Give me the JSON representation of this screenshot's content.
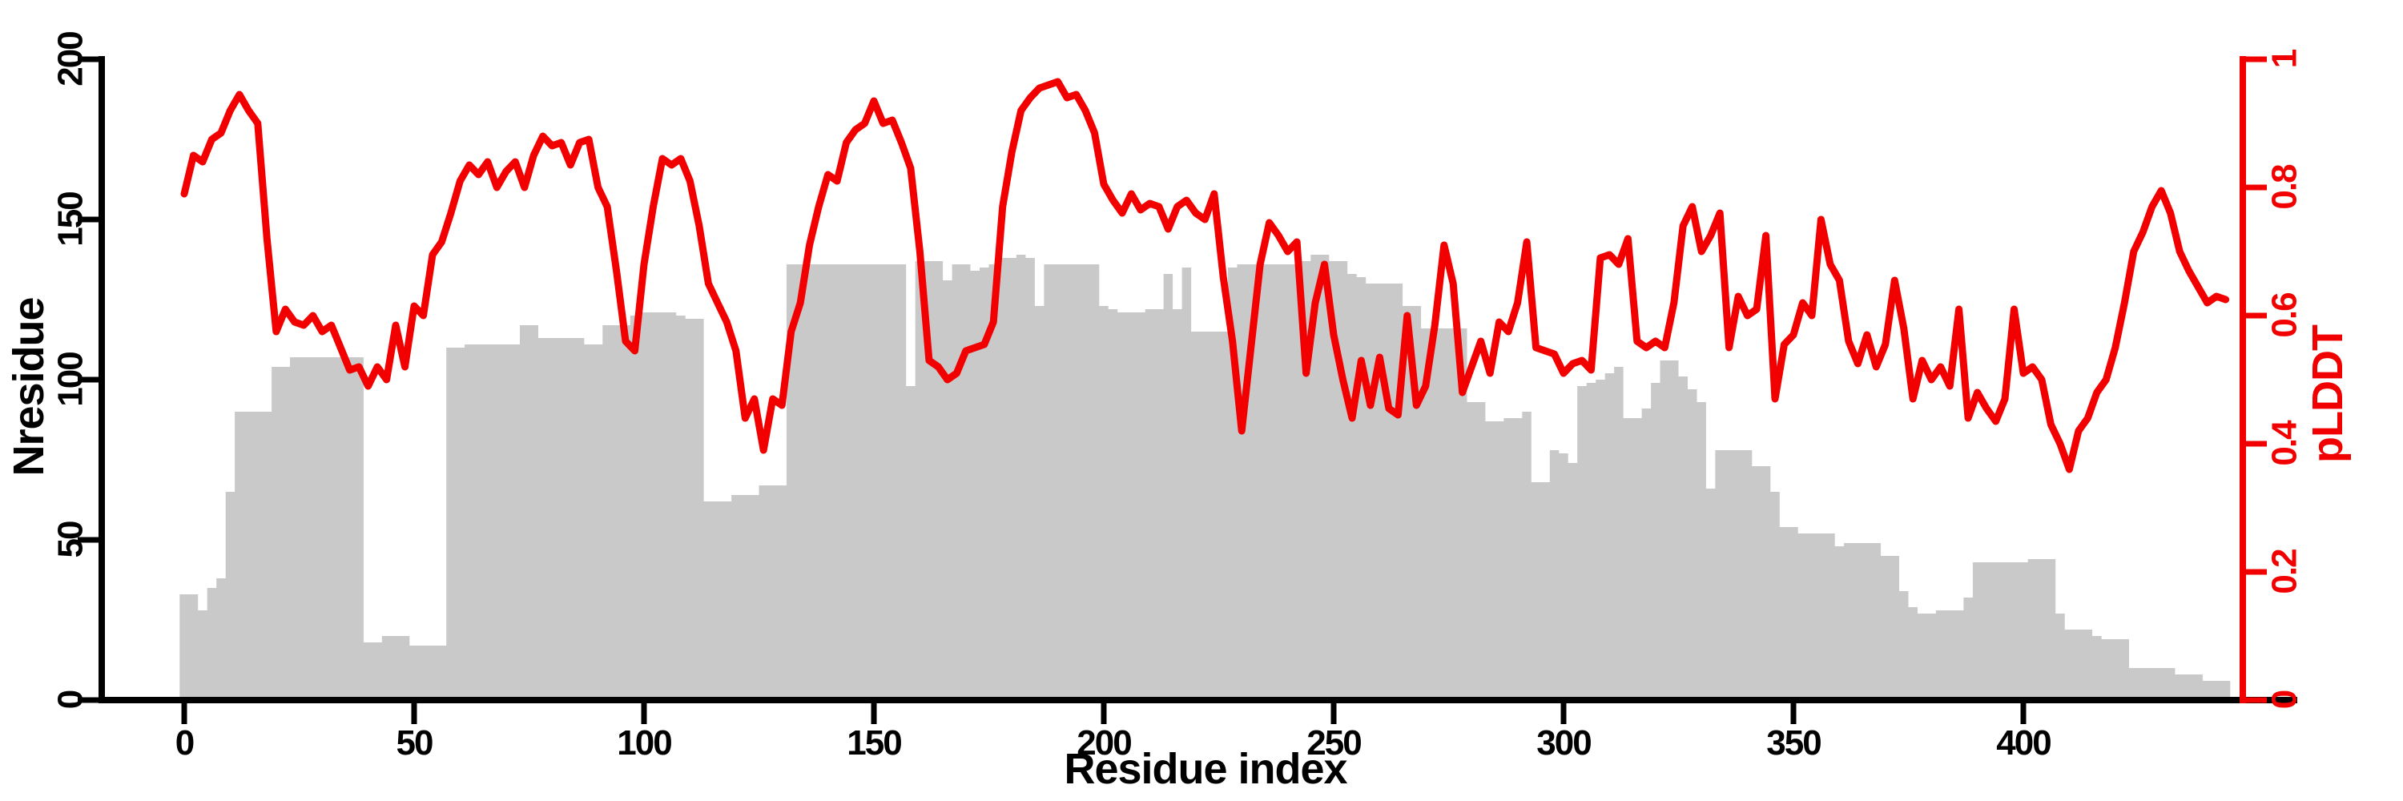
{
  "chart_data": {
    "type": "combo",
    "title": "",
    "xlabel": "Residue index",
    "x_axis": {
      "ticks": [
        0,
        50,
        100,
        150,
        200,
        250,
        300,
        350,
        400
      ],
      "range": [
        0,
        450
      ],
      "grid": false
    },
    "left_axis": {
      "label": "Nresidue",
      "ticks": [
        0,
        50,
        100,
        150,
        200
      ],
      "range": [
        0,
        200
      ],
      "color": "#000000"
    },
    "right_axis": {
      "label": "pLDDT",
      "tick_labels": [
        "0",
        "0.2",
        "0.4",
        "0.6",
        "0.8",
        "1"
      ],
      "tick_values": [
        0,
        0.2,
        0.4,
        0.6,
        0.8,
        1
      ],
      "range": [
        0,
        1
      ],
      "color": "#f20000"
    },
    "legend": "none",
    "series": [
      {
        "name": "Nresidue",
        "type": "bar",
        "axis": "left",
        "color": "#c9c9c9",
        "x_start": 0,
        "x_step": 2,
        "values": [
          33,
          33,
          28,
          35,
          38,
          65,
          90,
          90,
          90,
          90,
          104,
          104,
          107,
          107,
          107,
          107,
          107,
          107,
          107,
          107,
          18,
          18,
          20,
          20,
          20,
          17,
          17,
          17,
          17,
          110,
          110,
          111,
          111,
          111,
          111,
          111,
          111,
          117,
          117,
          113,
          113,
          113,
          113,
          113,
          111,
          111,
          117,
          117,
          117,
          120,
          121,
          121,
          121,
          121,
          120,
          119,
          119,
          62,
          62,
          62,
          64,
          64,
          64,
          67,
          67,
          67,
          136,
          136,
          136,
          136,
          136,
          136,
          136,
          136,
          136,
          136,
          136,
          136,
          136,
          98,
          137,
          137,
          137,
          131,
          136,
          136,
          134,
          135,
          136,
          138,
          138,
          139,
          138,
          123,
          136,
          136,
          136,
          136,
          136,
          136,
          123,
          122,
          121,
          121,
          121,
          122,
          122,
          133,
          122,
          135,
          115,
          115,
          115,
          115,
          135,
          136,
          136,
          136,
          136,
          136,
          136,
          136,
          137,
          139,
          139,
          137,
          137,
          133,
          132,
          130,
          130,
          130,
          130,
          123,
          123,
          116,
          116,
          116,
          116,
          116,
          93,
          93,
          87,
          87,
          88,
          88,
          90,
          68,
          68,
          78,
          77,
          74,
          98,
          99,
          100,
          102,
          104,
          88,
          88,
          91,
          99,
          106,
          106,
          101,
          97,
          93,
          66,
          78,
          78,
          78,
          78,
          73,
          73,
          65,
          54,
          54,
          52,
          52,
          52,
          52,
          48,
          49,
          49,
          49,
          49,
          45,
          45,
          34,
          29,
          27,
          27,
          28,
          28,
          28,
          32,
          43,
          43,
          43,
          43,
          43,
          43,
          44,
          44,
          44,
          27,
          22,
          22,
          22,
          20,
          19,
          19,
          19,
          10,
          10,
          10,
          10,
          10,
          8,
          8,
          8,
          6,
          6,
          6
        ]
      },
      {
        "name": "pLDDT",
        "type": "line",
        "axis": "right",
        "color": "#f20000",
        "x_start": 0,
        "x_step": 2,
        "values": [
          0.79,
          0.85,
          0.84,
          0.875,
          0.885,
          0.92,
          0.945,
          0.92,
          0.9,
          0.72,
          0.575,
          0.61,
          0.59,
          0.585,
          0.6,
          0.575,
          0.585,
          0.55,
          0.515,
          0.52,
          0.49,
          0.52,
          0.5,
          0.585,
          0.52,
          0.615,
          0.6,
          0.695,
          0.715,
          0.76,
          0.81,
          0.835,
          0.82,
          0.84,
          0.8,
          0.825,
          0.84,
          0.8,
          0.85,
          0.88,
          0.865,
          0.87,
          0.835,
          0.87,
          0.875,
          0.8,
          0.77,
          0.67,
          0.56,
          0.545,
          0.68,
          0.77,
          0.845,
          0.835,
          0.845,
          0.81,
          0.74,
          0.65,
          0.62,
          0.59,
          0.545,
          0.44,
          0.47,
          0.39,
          0.47,
          0.46,
          0.575,
          0.62,
          0.71,
          0.77,
          0.82,
          0.81,
          0.87,
          0.89,
          0.9,
          0.935,
          0.9,
          0.905,
          0.87,
          0.83,
          0.7,
          0.53,
          0.52,
          0.5,
          0.51,
          0.545,
          0.55,
          0.555,
          0.59,
          0.77,
          0.855,
          0.92,
          0.94,
          0.955,
          0.96,
          0.965,
          0.94,
          0.945,
          0.92,
          0.885,
          0.805,
          0.78,
          0.76,
          0.79,
          0.765,
          0.775,
          0.77,
          0.735,
          0.77,
          0.78,
          0.76,
          0.75,
          0.79,
          0.66,
          0.56,
          0.42,
          0.55,
          0.68,
          0.745,
          0.725,
          0.7,
          0.715,
          0.51,
          0.62,
          0.68,
          0.57,
          0.5,
          0.44,
          0.53,
          0.46,
          0.535,
          0.455,
          0.445,
          0.6,
          0.46,
          0.49,
          0.585,
          0.71,
          0.65,
          0.48,
          0.52,
          0.56,
          0.51,
          0.59,
          0.575,
          0.62,
          0.715,
          0.55,
          0.545,
          0.54,
          0.51,
          0.525,
          0.53,
          0.515,
          0.69,
          0.695,
          0.68,
          0.72,
          0.56,
          0.55,
          0.56,
          0.55,
          0.62,
          0.74,
          0.77,
          0.7,
          0.725,
          0.76,
          0.55,
          0.63,
          0.6,
          0.61,
          0.725,
          0.47,
          0.555,
          0.57,
          0.62,
          0.6,
          0.75,
          0.68,
          0.655,
          0.56,
          0.525,
          0.57,
          0.52,
          0.555,
          0.655,
          0.58,
          0.47,
          0.53,
          0.5,
          0.52,
          0.49,
          0.61,
          0.44,
          0.48,
          0.455,
          0.435,
          0.47,
          0.61,
          0.51,
          0.52,
          0.5,
          0.43,
          0.4,
          0.36,
          0.42,
          0.44,
          0.48,
          0.5,
          0.55,
          0.62,
          0.7,
          0.73,
          0.77,
          0.795,
          0.76,
          0.7,
          0.67,
          0.645,
          0.62,
          0.63,
          0.625
        ]
      }
    ]
  }
}
